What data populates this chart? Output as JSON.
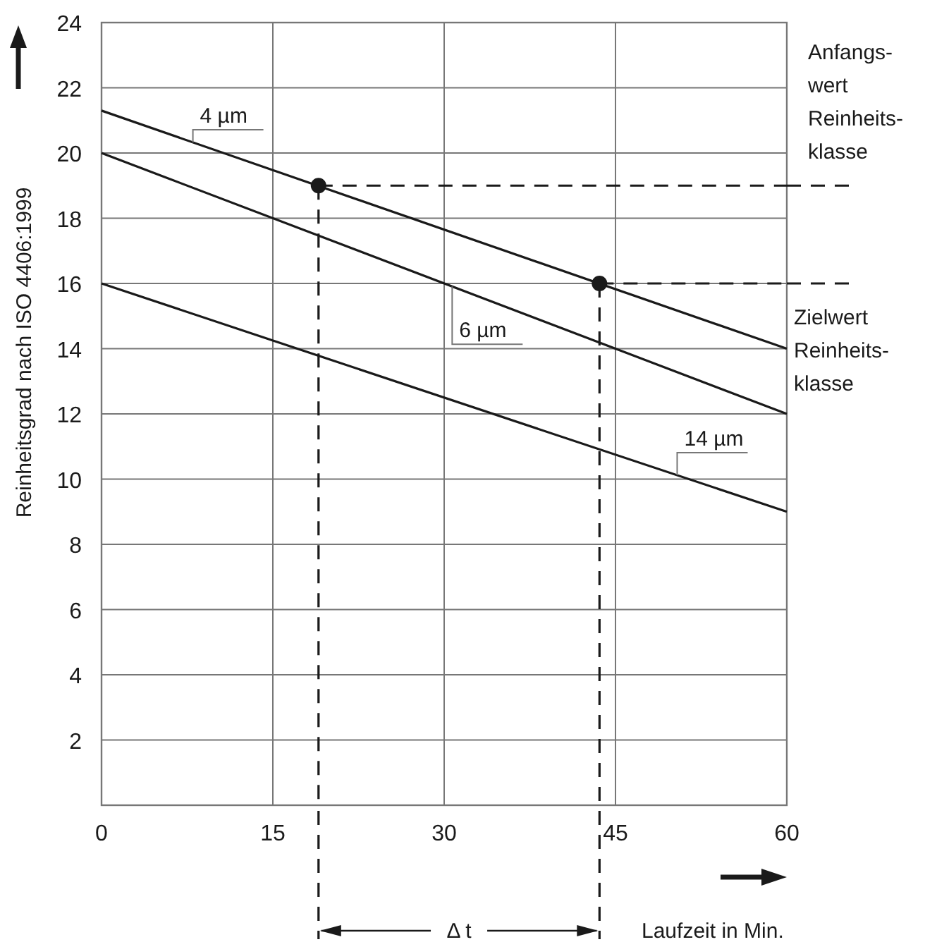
{
  "chart_data": {
    "type": "line",
    "xlabel": "Laufzeit in Min.",
    "ylabel": "Reinheitsgrad nach ISO 4406:1999",
    "xlim": [
      0,
      60
    ],
    "ylim": [
      0,
      24
    ],
    "xticks": [
      0,
      15,
      30,
      45,
      60
    ],
    "yticks": [
      {
        "value": 0,
        "label": null
      },
      2,
      4,
      6,
      8,
      10,
      12,
      14,
      16,
      18,
      20,
      22,
      24
    ],
    "grid": true,
    "marker": "none",
    "series": [
      {
        "name": "4 µm",
        "color": "#1a1a1a",
        "x": [
          0,
          60
        ],
        "values": [
          21.3,
          14
        ]
      },
      {
        "name": "6 µm",
        "color": "#1a1a1a",
        "x": [
          0,
          60
        ],
        "values": [
          20,
          12
        ]
      },
      {
        "name": "14 µm",
        "color": "#1a1a1a",
        "x": [
          0,
          60
        ],
        "values": [
          16,
          9
        ]
      },
      {
        "color": "#1a1a1a",
        "line_style": "dashed",
        "x": [
          19,
          60
        ],
        "values": [
          19,
          19
        ]
      },
      {
        "color": "#1a1a1a",
        "line_style": "dashed",
        "x": [
          43.6,
          60
        ],
        "values": [
          16,
          16
        ]
      },
      {
        "color": "#1a1a1a",
        "line_style": "dashed",
        "x": [
          19,
          19
        ],
        "values": [
          19,
          0
        ]
      },
      {
        "color": "#1a1a1a",
        "line_style": "dashed",
        "x": [
          43.6,
          43.6
        ],
        "values": [
          16,
          0
        ]
      },
      {
        "type": "scatter",
        "color": "#1a1a1a",
        "marker": "circle",
        "x": [
          19,
          43.6
        ],
        "values": [
          19,
          16
        ]
      }
    ],
    "annotations": [
      "Anfangs-\nwert\nReinheits-\nklasse",
      "Zielwert\nReinheits-\nklasse",
      "Δ t"
    ]
  }
}
